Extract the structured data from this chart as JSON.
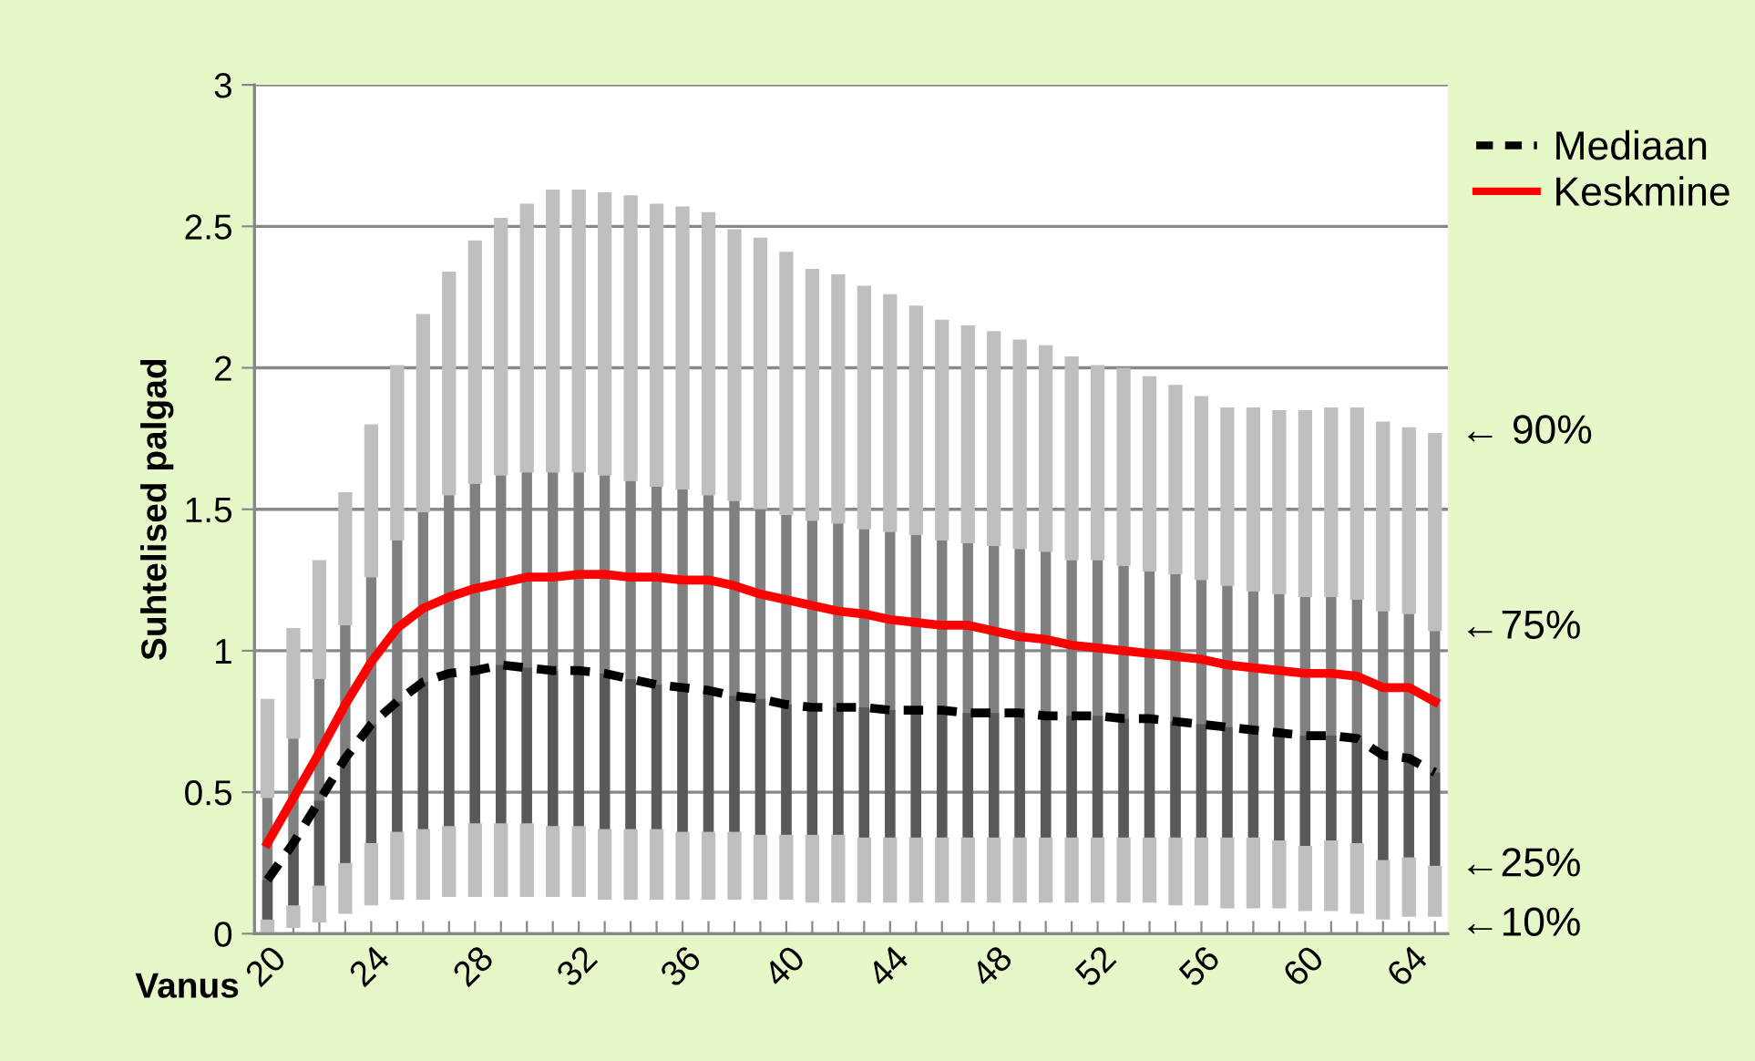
{
  "chart_data": {
    "type": "box",
    "ylabel": "Suhtelised palgad",
    "xlabel": "Vanus",
    "categories": [
      "20",
      null,
      null,
      null,
      "24",
      null,
      null,
      null,
      "28",
      null,
      null,
      null,
      "32",
      null,
      null,
      null,
      "36",
      null,
      null,
      null,
      "40",
      null,
      null,
      null,
      "44",
      null,
      null,
      null,
      "48",
      null,
      null,
      null,
      "52",
      null,
      null,
      null,
      "56",
      null,
      null,
      null,
      "60",
      null,
      null,
      null,
      "64",
      null
    ],
    "ylim": [
      0,
      3
    ],
    "yticks": [
      0,
      {
        "value": 0.5,
        "label": "0.5"
      },
      1,
      {
        "value": 1.5,
        "label": "1.5"
      },
      2,
      {
        "value": 2.5,
        "label": "2.5"
      },
      3
    ],
    "grid": "y",
    "legend": "top right",
    "series": [
      {
        "color": "#808080",
        "boxes": [
          {
            "low": 0.0,
            "q1": 0.05,
            "median": 0.19,
            "q3": 0.48,
            "high": 0.83
          },
          {
            "low": 0.02,
            "q1": 0.1,
            "median": 0.32,
            "q3": 0.69,
            "high": 1.08
          },
          {
            "low": 0.04,
            "q1": 0.17,
            "median": 0.47,
            "q3": 0.9,
            "high": 1.32
          },
          {
            "low": 0.07,
            "q1": 0.25,
            "median": 0.62,
            "q3": 1.09,
            "high": 1.56
          },
          {
            "low": 0.1,
            "q1": 0.32,
            "median": 0.74,
            "q3": 1.26,
            "high": 1.8
          },
          {
            "low": 0.12,
            "q1": 0.36,
            "median": 0.82,
            "q3": 1.39,
            "high": 2.01
          },
          {
            "low": 0.12,
            "q1": 0.37,
            "median": 0.89,
            "q3": 1.49,
            "high": 2.19
          },
          {
            "low": 0.13,
            "q1": 0.38,
            "median": 0.92,
            "q3": 1.55,
            "high": 2.34
          },
          {
            "low": 0.13,
            "q1": 0.39,
            "median": 0.93,
            "q3": 1.59,
            "high": 2.45
          },
          {
            "low": 0.13,
            "q1": 0.39,
            "median": 0.95,
            "q3": 1.62,
            "high": 2.53
          },
          {
            "low": 0.13,
            "q1": 0.39,
            "median": 0.94,
            "q3": 1.63,
            "high": 2.58
          },
          {
            "low": 0.13,
            "q1": 0.38,
            "median": 0.93,
            "q3": 1.63,
            "high": 2.63
          },
          {
            "low": 0.13,
            "q1": 0.38,
            "median": 0.93,
            "q3": 1.63,
            "high": 2.63
          },
          {
            "low": 0.12,
            "q1": 0.37,
            "median": 0.92,
            "q3": 1.62,
            "high": 2.62
          },
          {
            "low": 0.12,
            "q1": 0.37,
            "median": 0.9,
            "q3": 1.6,
            "high": 2.61
          },
          {
            "low": 0.12,
            "q1": 0.37,
            "median": 0.88,
            "q3": 1.58,
            "high": 2.58
          },
          {
            "low": 0.12,
            "q1": 0.36,
            "median": 0.87,
            "q3": 1.57,
            "high": 2.57
          },
          {
            "low": 0.12,
            "q1": 0.36,
            "median": 0.86,
            "q3": 1.55,
            "high": 2.55
          },
          {
            "low": 0.12,
            "q1": 0.36,
            "median": 0.84,
            "q3": 1.53,
            "high": 2.49
          },
          {
            "low": 0.12,
            "q1": 0.35,
            "median": 0.83,
            "q3": 1.5,
            "high": 2.46
          },
          {
            "low": 0.12,
            "q1": 0.35,
            "median": 0.81,
            "q3": 1.48,
            "high": 2.41
          },
          {
            "low": 0.11,
            "q1": 0.35,
            "median": 0.8,
            "q3": 1.46,
            "high": 2.35
          },
          {
            "low": 0.11,
            "q1": 0.35,
            "median": 0.8,
            "q3": 1.45,
            "high": 2.33
          },
          {
            "low": 0.11,
            "q1": 0.34,
            "median": 0.8,
            "q3": 1.43,
            "high": 2.29
          },
          {
            "low": 0.11,
            "q1": 0.34,
            "median": 0.79,
            "q3": 1.42,
            "high": 2.26
          },
          {
            "low": 0.11,
            "q1": 0.34,
            "median": 0.79,
            "q3": 1.41,
            "high": 2.22
          },
          {
            "low": 0.11,
            "q1": 0.34,
            "median": 0.79,
            "q3": 1.39,
            "high": 2.17
          },
          {
            "low": 0.11,
            "q1": 0.34,
            "median": 0.78,
            "q3": 1.38,
            "high": 2.15
          },
          {
            "low": 0.11,
            "q1": 0.34,
            "median": 0.78,
            "q3": 1.37,
            "high": 2.13
          },
          {
            "low": 0.11,
            "q1": 0.34,
            "median": 0.78,
            "q3": 1.36,
            "high": 2.1
          },
          {
            "low": 0.11,
            "q1": 0.34,
            "median": 0.77,
            "q3": 1.35,
            "high": 2.08
          },
          {
            "low": 0.11,
            "q1": 0.34,
            "median": 0.77,
            "q3": 1.32,
            "high": 2.04
          },
          {
            "low": 0.11,
            "q1": 0.34,
            "median": 0.77,
            "q3": 1.32,
            "high": 2.01
          },
          {
            "low": 0.11,
            "q1": 0.34,
            "median": 0.76,
            "q3": 1.3,
            "high": 2.0
          },
          {
            "low": 0.11,
            "q1": 0.34,
            "median": 0.76,
            "q3": 1.28,
            "high": 1.97
          },
          {
            "low": 0.1,
            "q1": 0.34,
            "median": 0.75,
            "q3": 1.27,
            "high": 1.94
          },
          {
            "low": 0.1,
            "q1": 0.34,
            "median": 0.74,
            "q3": 1.25,
            "high": 1.9
          },
          {
            "low": 0.09,
            "q1": 0.34,
            "median": 0.73,
            "q3": 1.23,
            "high": 1.86
          },
          {
            "low": 0.09,
            "q1": 0.34,
            "median": 0.72,
            "q3": 1.21,
            "high": 1.86
          },
          {
            "low": 0.09,
            "q1": 0.33,
            "median": 0.71,
            "q3": 1.2,
            "high": 1.85
          },
          {
            "low": 0.08,
            "q1": 0.31,
            "median": 0.7,
            "q3": 1.19,
            "high": 1.85
          },
          {
            "low": 0.08,
            "q1": 0.33,
            "median": 0.7,
            "q3": 1.19,
            "high": 1.86
          },
          {
            "low": 0.07,
            "q1": 0.32,
            "median": 0.69,
            "q3": 1.18,
            "high": 1.86
          },
          {
            "low": 0.05,
            "q1": 0.26,
            "median": 0.63,
            "q3": 1.14,
            "high": 1.81
          },
          {
            "low": 0.06,
            "q1": 0.27,
            "median": 0.62,
            "q3": 1.13,
            "high": 1.79
          },
          {
            "low": 0.06,
            "q1": 0.24,
            "median": 0.57,
            "q3": 1.07,
            "high": 1.77
          }
        ]
      },
      {
        "type": "line",
        "name": "Mediaan",
        "color": "#000000",
        "line_style": "dashed",
        "values": [
          0.19,
          0.32,
          0.47,
          0.62,
          0.74,
          0.82,
          0.89,
          0.92,
          0.93,
          0.95,
          0.94,
          0.93,
          0.93,
          0.92,
          0.9,
          0.88,
          0.87,
          0.86,
          0.84,
          0.83,
          0.81,
          0.8,
          0.8,
          0.8,
          0.79,
          0.79,
          0.79,
          0.78,
          0.78,
          0.78,
          0.77,
          0.77,
          0.77,
          0.76,
          0.76,
          0.75,
          0.74,
          0.73,
          0.72,
          0.71,
          0.7,
          0.7,
          0.69,
          0.63,
          0.62,
          0.57
        ]
      },
      {
        "type": "line",
        "name": "Keskmine",
        "color": "#ff0000",
        "line_style": "solid",
        "values": [
          0.32,
          0.48,
          0.64,
          0.81,
          0.96,
          1.08,
          1.15,
          1.19,
          1.22,
          1.24,
          1.26,
          1.26,
          1.27,
          1.27,
          1.26,
          1.26,
          1.25,
          1.25,
          1.23,
          1.2,
          1.18,
          1.16,
          1.14,
          1.13,
          1.11,
          1.1,
          1.09,
          1.09,
          1.07,
          1.05,
          1.04,
          1.02,
          1.01,
          1.0,
          0.99,
          0.98,
          0.97,
          0.95,
          0.94,
          0.93,
          0.92,
          0.92,
          0.91,
          0.87,
          0.87,
          0.82
        ]
      }
    ],
    "annotations": [
      "← 90%",
      "←75%",
      "←25%",
      "←10%"
    ]
  }
}
